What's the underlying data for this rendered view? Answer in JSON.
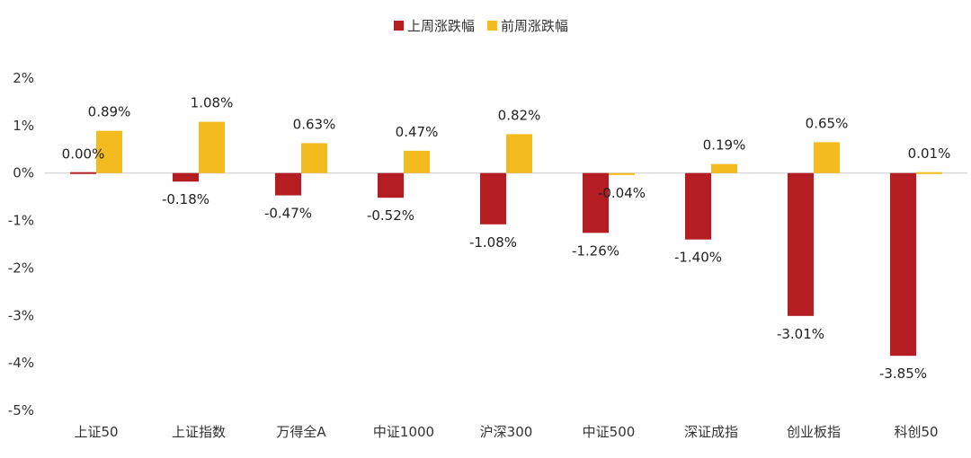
{
  "chart_data": {
    "type": "bar",
    "categories": [
      "上证50",
      "上证指数",
      "万得全A",
      "中证1000",
      "沪深300",
      "中证500",
      "深证成指",
      "创业板指",
      "科创50"
    ],
    "series": [
      {
        "name": "上周涨跌幅",
        "color": "#b41e23",
        "values": [
          0.0,
          -0.18,
          -0.47,
          -0.52,
          -1.08,
          -1.26,
          -1.4,
          -3.01,
          -3.85
        ],
        "labels": [
          "0.00%",
          "-0.18%",
          "-0.47%",
          "-0.52%",
          "-1.08%",
          "-1.26%",
          "-1.40%",
          "-3.01%",
          "-3.85%"
        ]
      },
      {
        "name": "前周涨跌幅",
        "color": "#f4bb1f",
        "values": [
          0.89,
          1.08,
          0.63,
          0.47,
          0.82,
          -0.04,
          0.19,
          0.65,
          0.01
        ],
        "labels": [
          "0.89%",
          "1.08%",
          "0.63%",
          "0.47%",
          "0.82%",
          "-0.04%",
          "0.19%",
          "0.65%",
          "0.01%"
        ]
      }
    ],
    "y_ticks": [
      2,
      1,
      0,
      -1,
      -2,
      -3,
      -4,
      -5
    ],
    "y_tick_labels": [
      "2%",
      "1%",
      "0%",
      "-1%",
      "-2%",
      "-3%",
      "-4%",
      "-5%"
    ],
    "ylim": [
      -5,
      2
    ],
    "legend_position": "top-center",
    "grid": false
  }
}
